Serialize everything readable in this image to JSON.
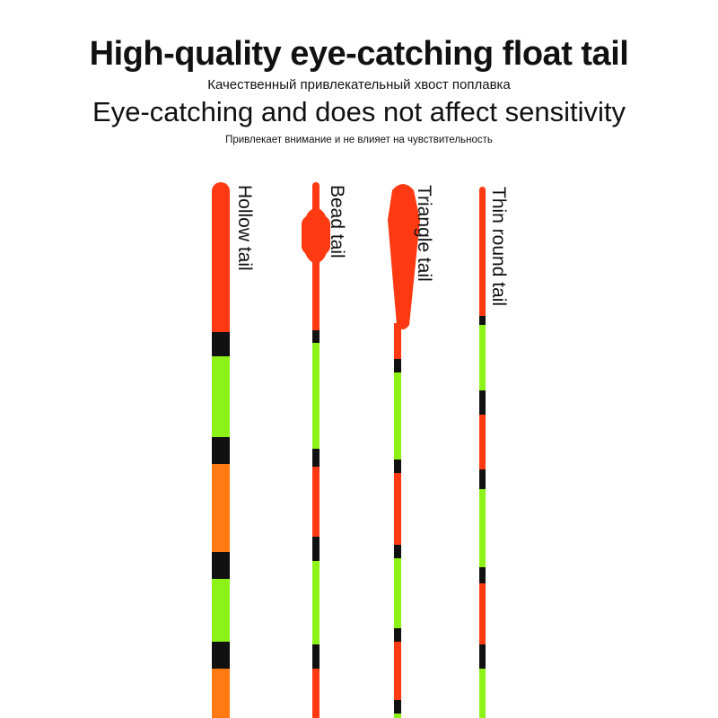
{
  "header": {
    "title": "High-quality eye-catching float tail",
    "subtitle": "Качественный привлекательный хвост поплавка",
    "tagline": "Eye-catching and does not affect sensitivity",
    "tagline_sub": "Привлекает внимание и не влияет на чувствительность"
  },
  "floats": [
    {
      "label": "Hollow tail"
    },
    {
      "label": "Bead tail"
    },
    {
      "label": "Triangle tail"
    },
    {
      "label": "Thin round tail"
    }
  ]
}
